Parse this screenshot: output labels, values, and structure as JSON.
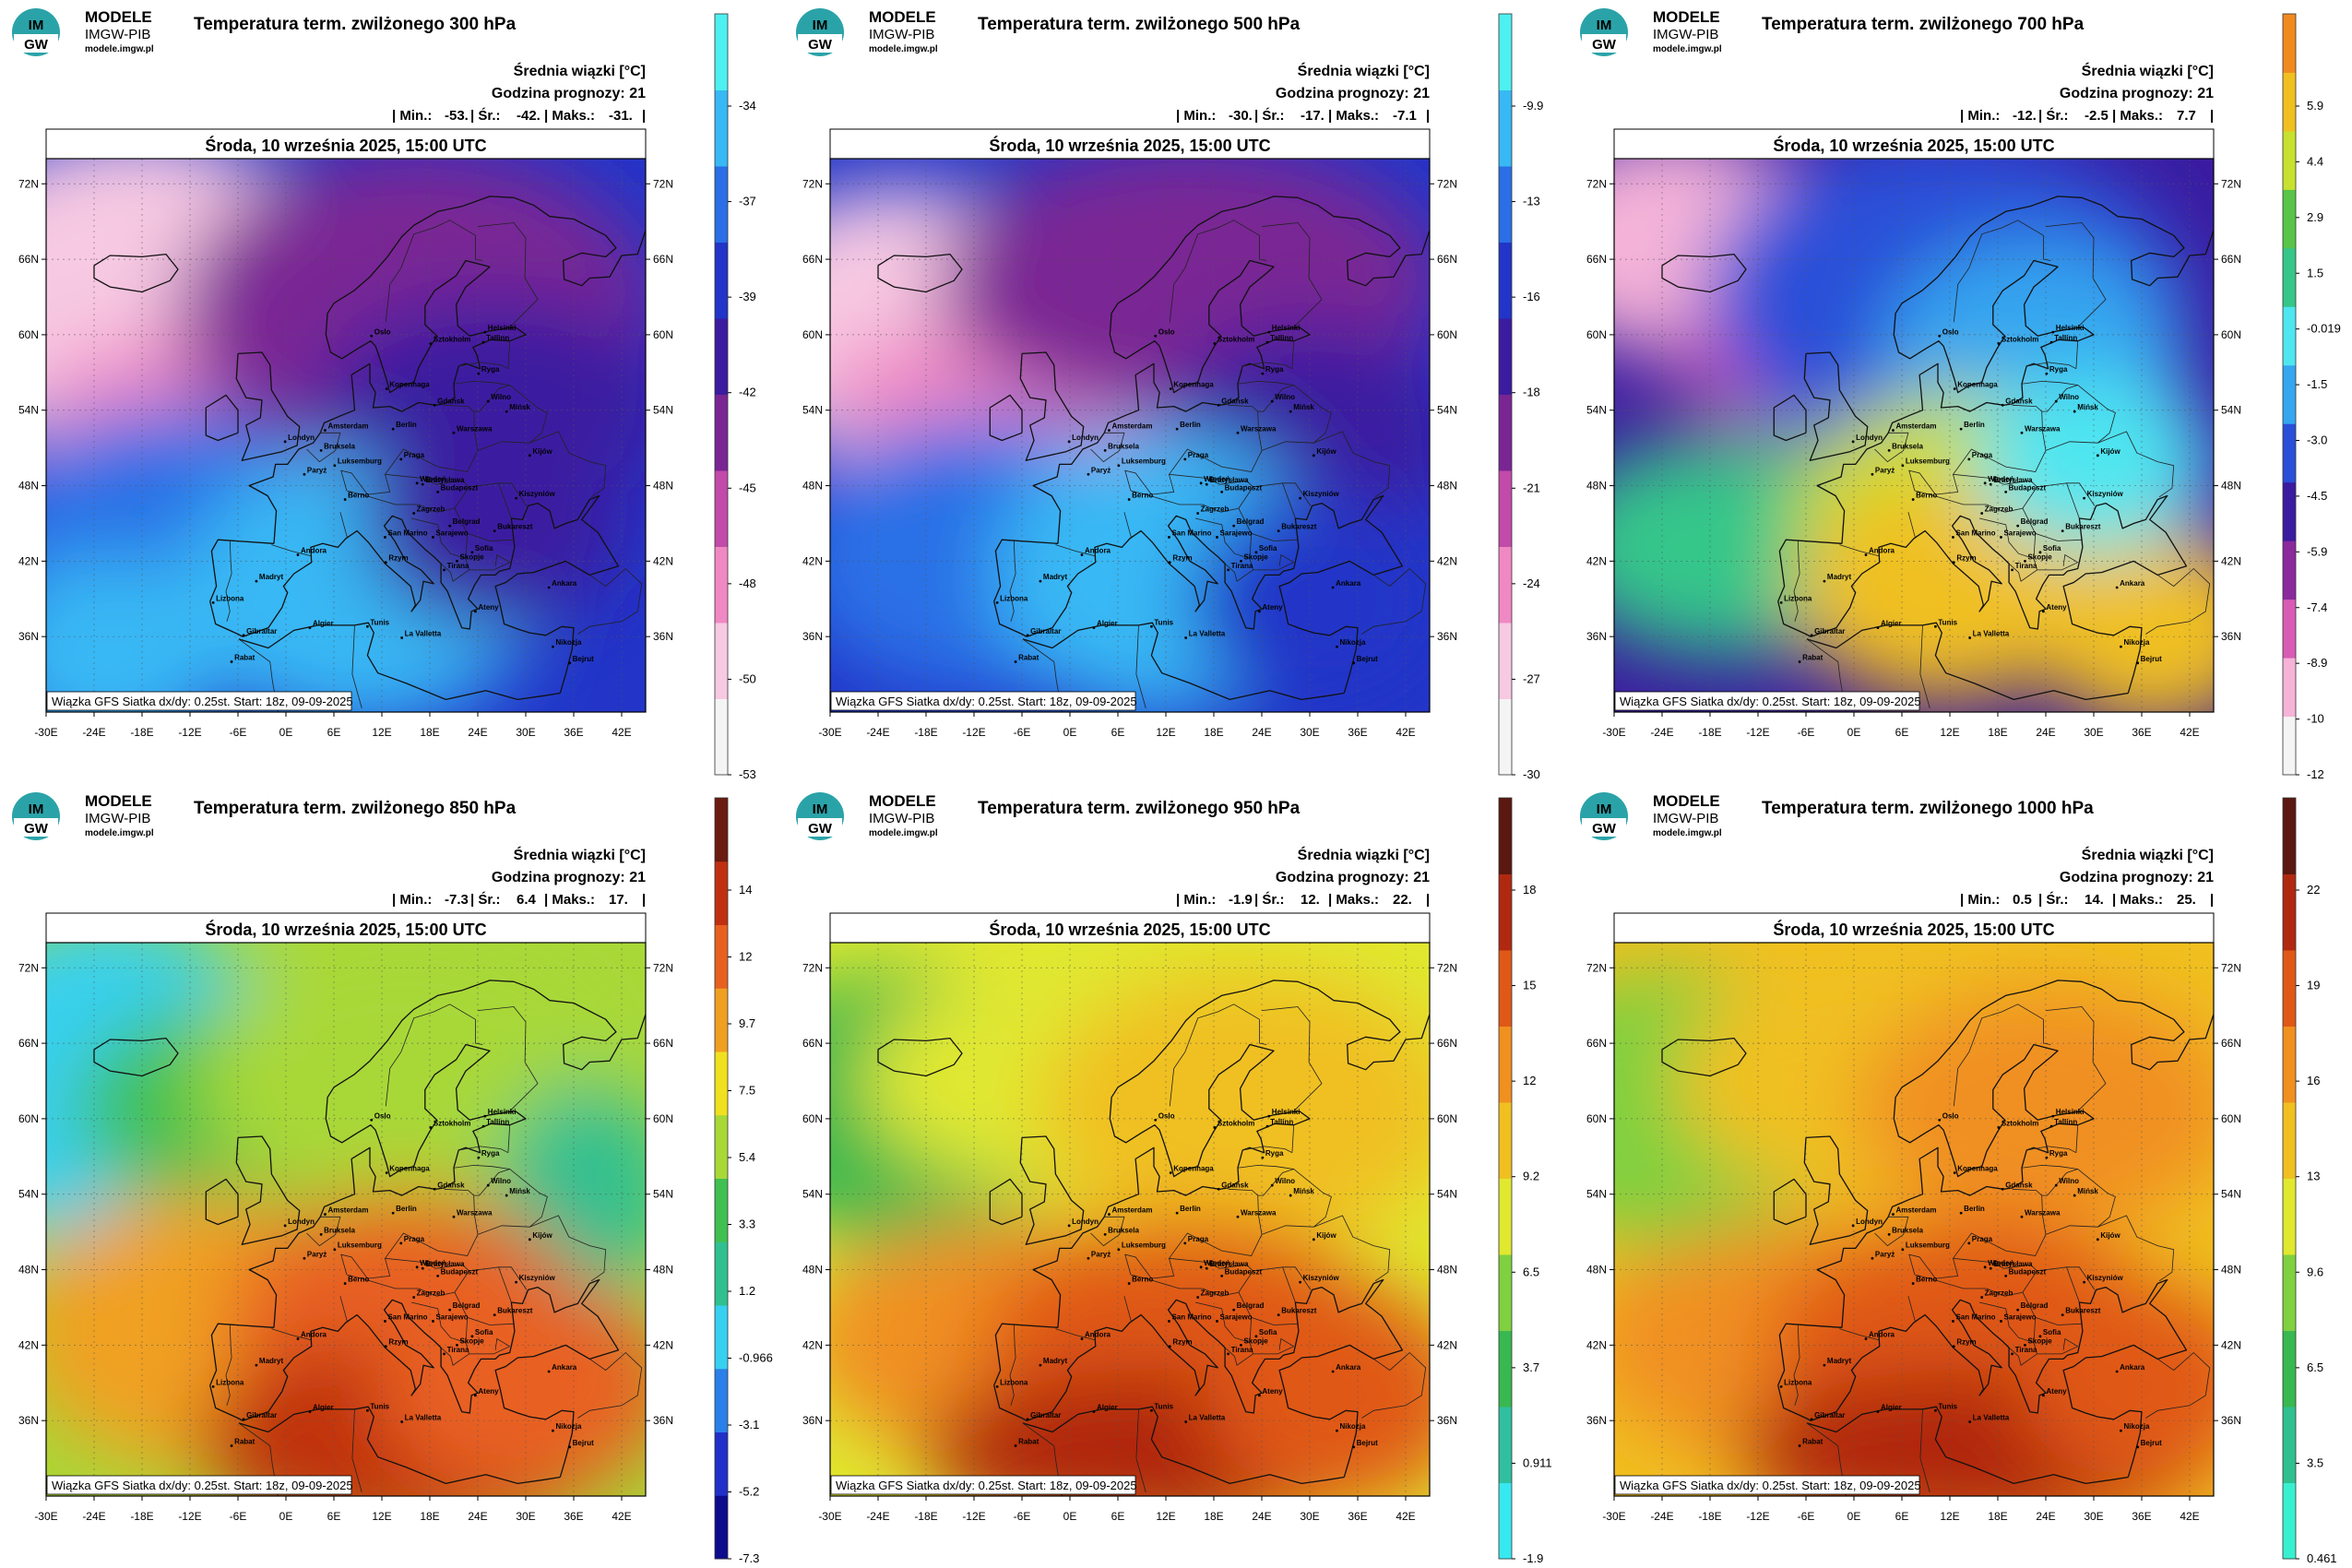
{
  "logo": {
    "line1": "MODELE",
    "line2": "IMGW-PIB",
    "line3": "modele.imgw.pl"
  },
  "common": {
    "mean_label": "Średnia wiązki [°C]",
    "forecast_hour_label": "Godzina prognozy: 21",
    "date_title": "Środa, 10 września 2025, 15:00 UTC",
    "caption": "Wiązka GFS Siatka dx/dy: 0.25st. Start: 18z, 09-09-2025",
    "lat_ticks": [
      "72N",
      "66N",
      "60N",
      "54N",
      "48N",
      "42N",
      "36N"
    ],
    "lon_ticks": [
      "-30E",
      "-24E",
      "-18E",
      "-12E",
      "-6E",
      "0E",
      "6E",
      "12E",
      "18E",
      "24E",
      "30E",
      "36E",
      "42E"
    ]
  },
  "cities": [
    "Oslo",
    "Helsinki",
    "Sztokholm",
    "Tallinn",
    "Ryga",
    "Kopenhaga",
    "Wilno",
    "Mińsk",
    "Gdańsk",
    "Warszawa",
    "Kijów",
    "Berlin",
    "Amsterdam",
    "Londyn",
    "Bruksela",
    "Luksemburg",
    "Paryż",
    "Praga",
    "Wiedeń",
    "Bratysława",
    "Budapeszt",
    "Berno",
    "Zagrzeb",
    "Belgrad",
    "Bukareszt",
    "Kiszyniów",
    "Sarajewo",
    "San Marino",
    "Sofia",
    "Skopje",
    "Tirana",
    "Rzym",
    "Andora",
    "Madryt",
    "Lizbona",
    "Rabat",
    "Gibraltar",
    "Algier",
    "Tunis",
    "La Valletta",
    "Ateny",
    "Ankara",
    "Nikozja",
    "Bejrut"
  ],
  "panels": [
    {
      "title": "Temperatura term. zwilżonego 300 hPa",
      "min": "-53.",
      "mean": "-42.",
      "max": "-31.",
      "scale": "cold300",
      "colorbar_ticks": [
        "-34",
        "-37",
        "-39",
        "-42",
        "-45",
        "-48",
        "-50",
        "-53"
      ]
    },
    {
      "title": "Temperatura term. zwilżonego 500 hPa",
      "min": "-30.",
      "mean": "-17.",
      "max": "-7.1",
      "scale": "cold500",
      "colorbar_ticks": [
        "-9.9",
        "-13",
        "-16",
        "-18",
        "-21",
        "-24",
        "-27",
        "-30"
      ]
    },
    {
      "title": "Temperatura term. zwilżonego 700 hPa",
      "min": "-12.",
      "mean": "-2.5",
      "max": "7.7",
      "scale": "mid700",
      "colorbar_ticks": [
        "5.9",
        "4.4",
        "2.9",
        "1.5",
        "-0.019",
        "-1.5",
        "-3.0",
        "-4.5",
        "-5.9",
        "-7.4",
        "-8.9",
        "-10",
        "-12"
      ]
    },
    {
      "title": "Temperatura term. zwilżonego 850 hPa",
      "min": "-7.3",
      "mean": "6.4",
      "max": "17.",
      "scale": "warm850",
      "colorbar_ticks": [
        "14",
        "12",
        "9.7",
        "7.5",
        "5.4",
        "3.3",
        "1.2",
        "-0.966",
        "-3.1",
        "-5.2",
        "-7.3"
      ]
    },
    {
      "title": "Temperatura term. zwilżonego 950 hPa",
      "min": "-1.9",
      "mean": "12.",
      "max": "22.",
      "scale": "warm950",
      "colorbar_ticks": [
        "18",
        "15",
        "12",
        "9.2",
        "6.5",
        "3.7",
        "0.911",
        "-1.9"
      ]
    },
    {
      "title": "Temperatura term. zwilżonego 1000 hPa",
      "min": "0.5",
      "mean": "14.",
      "max": "25.",
      "scale": "warm1000",
      "colorbar_ticks": [
        "22",
        "19",
        "16",
        "13",
        "9.6",
        "6.5",
        "3.5",
        "0.461"
      ]
    }
  ],
  "colors": {
    "cold300": [
      "#f4f4f4",
      "#f7c9e2",
      "#f088c4",
      "#c24aa8",
      "#7a2594",
      "#3b1ba0",
      "#2235c8",
      "#2a6fe6",
      "#38b8f4",
      "#4ef0f0"
    ],
    "cold500": [
      "#f4f4f4",
      "#f7c9e2",
      "#f088c4",
      "#c24aa8",
      "#7a2594",
      "#3b1ba0",
      "#2235c8",
      "#2a6fe6",
      "#38b8f4",
      "#4ef0f0"
    ],
    "mid700": [
      "#f4f4f4",
      "#f5b3d8",
      "#d85cb5",
      "#8a2a9c",
      "#3b1ba0",
      "#2a4fd8",
      "#36a6f0",
      "#4fe6f0",
      "#36c68a",
      "#58c448",
      "#c8e030",
      "#f0c020",
      "#f08a20"
    ],
    "warm850": [
      "#0c0c8c",
      "#2030c8",
      "#2a80e8",
      "#38d0f0",
      "#30c090",
      "#40c050",
      "#a8d838",
      "#f0e020",
      "#f0a020",
      "#e86020",
      "#c03010",
      "#6a1c10"
    ],
    "warm950": [
      "#38e8f0",
      "#30c0a0",
      "#38b850",
      "#80d040",
      "#e0e830",
      "#f0c020",
      "#f09020",
      "#e05818",
      "#b02810",
      "#5a1810"
    ],
    "warm1000": [
      "#38f0d0",
      "#30c090",
      "#38b850",
      "#80d040",
      "#e0e830",
      "#f0c020",
      "#f09020",
      "#e05818",
      "#b02810",
      "#5a1810"
    ]
  }
}
